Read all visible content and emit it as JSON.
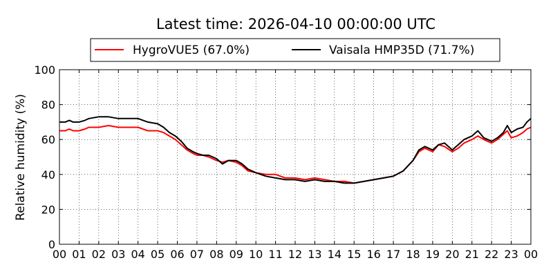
{
  "chart_data": {
    "type": "line",
    "title": "Latest time: 2026-04-10 00:00:00 UTC",
    "ylabel": "Relative humidity (%)",
    "xlabel": "",
    "xlim": [
      0,
      24
    ],
    "ylim": [
      0,
      100
    ],
    "x_ticks": [
      0,
      1,
      2,
      3,
      4,
      5,
      6,
      7,
      8,
      9,
      10,
      11,
      12,
      13,
      14,
      15,
      16,
      17,
      18,
      19,
      20,
      21,
      22,
      23,
      24
    ],
    "x_tick_labels": [
      "00",
      "01",
      "02",
      "03",
      "04",
      "05",
      "06",
      "07",
      "08",
      "09",
      "10",
      "11",
      "12",
      "13",
      "14",
      "15",
      "16",
      "17",
      "18",
      "19",
      "20",
      "21",
      "22",
      "23",
      "00"
    ],
    "y_ticks": [
      0,
      20,
      40,
      60,
      80,
      100
    ],
    "y_tick_labels": [
      "0",
      "20",
      "40",
      "60",
      "80",
      "100"
    ],
    "grid": true,
    "legend_position": "top-center-outside",
    "series": [
      {
        "name": "HygroVUE5 (67.0%)",
        "color": "#ff0000",
        "x": [
          0,
          0.3,
          0.5,
          0.7,
          1,
          1.3,
          1.5,
          2,
          2.5,
          3,
          3.5,
          4,
          4.5,
          5,
          5.3,
          5.6,
          5.9,
          6.2,
          6.5,
          6.8,
          7,
          7.3,
          7.6,
          8,
          8.3,
          8.6,
          9,
          9.3,
          9.6,
          10,
          10.5,
          11,
          11.5,
          12,
          12.5,
          13,
          13.5,
          14,
          14.5,
          15,
          15.5,
          16,
          16.5,
          17,
          17.5,
          18,
          18.3,
          18.6,
          19,
          19.3,
          19.6,
          20,
          20.3,
          20.6,
          21,
          21.3,
          21.6,
          22,
          22.3,
          22.6,
          22.8,
          23,
          23.3,
          23.6,
          23.8,
          24
        ],
        "y": [
          65,
          65,
          66,
          65,
          65,
          66,
          67,
          67,
          68,
          67,
          67,
          67,
          65,
          65,
          64,
          62,
          60,
          57,
          54,
          52,
          51,
          51,
          50,
          48,
          47,
          48,
          47,
          45,
          42,
          41,
          40,
          40,
          38,
          38,
          37,
          38,
          37,
          36,
          36,
          35,
          36,
          37,
          38,
          39,
          42,
          48,
          53,
          55,
          53,
          57,
          56,
          53,
          55,
          58,
          60,
          62,
          60,
          58,
          60,
          63,
          65,
          61,
          62,
          64,
          66,
          67
        ]
      },
      {
        "name": "Vaisala HMP35D (71.7%)",
        "color": "#000000",
        "x": [
          0,
          0.3,
          0.5,
          0.7,
          1,
          1.3,
          1.5,
          2,
          2.5,
          3,
          3.5,
          4,
          4.5,
          5,
          5.3,
          5.6,
          5.9,
          6.2,
          6.5,
          6.8,
          7,
          7.3,
          7.6,
          8,
          8.3,
          8.6,
          9,
          9.3,
          9.6,
          10,
          10.5,
          11,
          11.5,
          12,
          12.5,
          13,
          13.5,
          14,
          14.5,
          15,
          15.5,
          16,
          16.5,
          17,
          17.5,
          18,
          18.3,
          18.6,
          19,
          19.3,
          19.6,
          20,
          20.3,
          20.6,
          21,
          21.3,
          21.6,
          22,
          22.3,
          22.6,
          22.8,
          23,
          23.3,
          23.6,
          23.8,
          24
        ],
        "y": [
          70,
          70,
          71,
          70,
          70,
          71,
          72,
          73,
          73,
          72,
          72,
          72,
          70,
          69,
          67,
          64,
          62,
          59,
          55,
          53,
          52,
          51,
          51,
          49,
          46,
          48,
          48,
          46,
          43,
          41,
          39,
          38,
          37,
          37,
          36,
          37,
          36,
          36,
          35,
          35,
          36,
          37,
          38,
          39,
          42,
          48,
          54,
          56,
          54,
          57,
          58,
          54,
          57,
          60,
          62,
          65,
          61,
          59,
          61,
          64,
          68,
          64,
          66,
          67,
          70,
          72
        ]
      }
    ]
  }
}
